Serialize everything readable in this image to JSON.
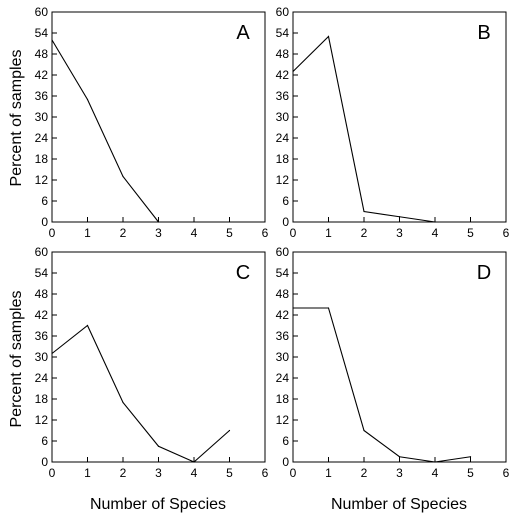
{
  "figure": {
    "ylabel_left_top": "Percent of samples",
    "ylabel_left_bottom": "Percent of samples",
    "xlabel_left": "Number of Species",
    "xlabel_right": "Number of Species"
  },
  "chart_data": [
    {
      "type": "line",
      "panel": "A",
      "x": [
        0,
        1,
        2,
        3
      ],
      "y": [
        52,
        35,
        13,
        0
      ],
      "xlim": [
        0,
        6
      ],
      "ylim": [
        0,
        60
      ],
      "xticks": [
        0,
        1,
        2,
        3,
        4,
        5,
        6
      ],
      "yticks": [
        0,
        6,
        12,
        18,
        24,
        30,
        36,
        42,
        48,
        54,
        60
      ],
      "grid": false,
      "ylabel": "Percent of samples",
      "xlabel": ""
    },
    {
      "type": "line",
      "panel": "B",
      "x": [
        0,
        1,
        2,
        3,
        4
      ],
      "y": [
        43,
        53,
        3,
        1.5,
        0
      ],
      "xlim": [
        0,
        6
      ],
      "ylim": [
        0,
        60
      ],
      "xticks": [
        0,
        1,
        2,
        3,
        4,
        5,
        6
      ],
      "yticks": [
        0,
        6,
        12,
        18,
        24,
        30,
        36,
        42,
        48,
        54,
        60
      ],
      "grid": false,
      "ylabel": "",
      "xlabel": ""
    },
    {
      "type": "line",
      "panel": "C",
      "x": [
        0,
        1,
        2,
        3,
        4,
        5
      ],
      "y": [
        31,
        39,
        17,
        4.5,
        0,
        9
      ],
      "xlim": [
        0,
        6
      ],
      "ylim": [
        0,
        60
      ],
      "xticks": [
        0,
        1,
        2,
        3,
        4,
        5,
        6
      ],
      "yticks": [
        0,
        6,
        12,
        18,
        24,
        30,
        36,
        42,
        48,
        54,
        60
      ],
      "grid": false,
      "ylabel": "Percent of samples",
      "xlabel": "Number of Species"
    },
    {
      "type": "line",
      "panel": "D",
      "x": [
        0,
        1,
        2,
        3,
        4,
        5
      ],
      "y": [
        44,
        44,
        9,
        1.5,
        0,
        1.5
      ],
      "xlim": [
        0,
        6
      ],
      "ylim": [
        0,
        60
      ],
      "xticks": [
        0,
        1,
        2,
        3,
        4,
        5,
        6
      ],
      "yticks": [
        0,
        6,
        12,
        18,
        24,
        30,
        36,
        42,
        48,
        54,
        60
      ],
      "grid": false,
      "ylabel": "",
      "xlabel": "Number of Species"
    }
  ]
}
